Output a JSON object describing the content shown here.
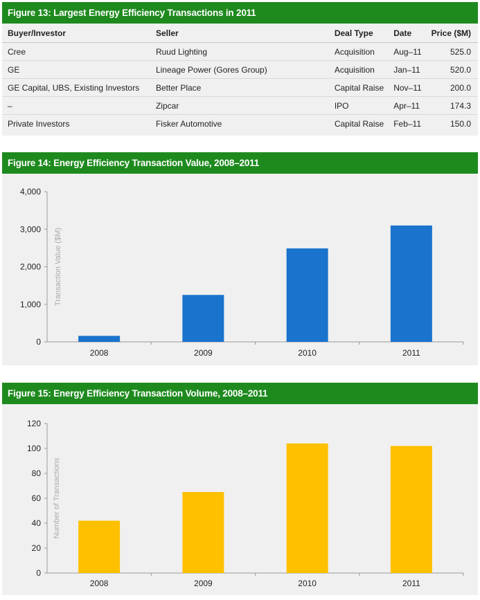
{
  "table": {
    "title": "Figure 13: Largest Energy Efficiency Transactions in 2011",
    "headers": [
      "Buyer/Investor",
      "Seller",
      "Deal Type",
      "Date",
      "Price ($M)"
    ],
    "rows": [
      [
        "Cree",
        "Ruud Lighting",
        "Acquisition",
        "Aug–11",
        "525.0"
      ],
      [
        "GE",
        "Lineage Power (Gores Group)",
        "Acquisition",
        "Jan–11",
        "520.0"
      ],
      [
        "GE Capital, UBS, Existing Investors",
        "Better Place",
        "Capital Raise",
        "Nov–11",
        "200.0"
      ],
      [
        "–",
        "Zipcar",
        "IPO",
        "Apr–11",
        "174.3"
      ],
      [
        "Private Investors",
        "Fisker Automotive",
        "Capital Raise",
        "Feb–11",
        "150.0"
      ]
    ]
  },
  "chart_data": [
    {
      "type": "bar",
      "title": "Figure 14: Energy Efficiency Transaction Value, 2008–2011",
      "categories": [
        "2008",
        "2009",
        "2010",
        "2011"
      ],
      "values": [
        160,
        1250,
        2490,
        3100
      ],
      "ylabel": "Transaction Value ($M)",
      "xlabel": "",
      "ylim": [
        0,
        4000
      ],
      "yticks": [
        0,
        1000,
        2000,
        3000,
        4000
      ],
      "ytick_labels": [
        "0",
        "1,000",
        "2,000",
        "3,000",
        "4,000"
      ],
      "color": "#1a73cc",
      "grid": false
    },
    {
      "type": "bar",
      "title": "Figure 15: Energy Efficiency Transaction Volume, 2008–2011",
      "categories": [
        "2008",
        "2009",
        "2010",
        "2011"
      ],
      "values": [
        42,
        65,
        104,
        102
      ],
      "ylabel": "Number of Transactions",
      "xlabel": "",
      "ylim": [
        0,
        120
      ],
      "yticks": [
        0,
        20,
        40,
        60,
        80,
        100,
        120
      ],
      "ytick_labels": [
        "0",
        "20",
        "40",
        "60",
        "80",
        "100",
        "120"
      ],
      "color": "#ffc000",
      "grid": false
    }
  ]
}
